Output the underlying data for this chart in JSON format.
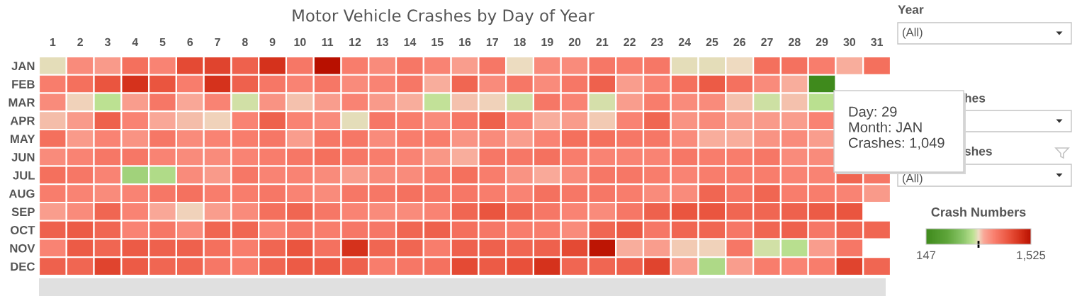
{
  "chart_data": [
    {
      "type": "heatmap",
      "title": "Motor Vehicle Crashes by Day of Year",
      "categories": [
        "1",
        "2",
        "3",
        "4",
        "5",
        "6",
        "7",
        "8",
        "9",
        "10",
        "11",
        "12",
        "13",
        "14",
        "15",
        "16",
        "17",
        "18",
        "19",
        "20",
        "21",
        "22",
        "23",
        "24",
        "25",
        "26",
        "27",
        "28",
        "29",
        "30",
        "31"
      ],
      "y_categories": [
        "JAN",
        "FEB",
        "MAR",
        "APR",
        "MAY",
        "JUN",
        "JUL",
        "AUG",
        "SEP",
        "OCT",
        "NOV",
        "DEC"
      ],
      "cells": [
        [
          825,
          1000,
          950,
          1110,
          1025,
          1275,
          1300,
          1175,
          1375,
          1075,
          1525,
          1050,
          1000,
          1075,
          1025,
          940,
          1075,
          835,
          1000,
          1000,
          1075,
          1050,
          1075,
          825,
          820,
          840,
          1110,
          1100,
          1049,
          900,
          1110
        ],
        [
          1050,
          1110,
          1225,
          1375,
          1225,
          1050,
          1375,
          1175,
          1075,
          1025,
          1075,
          1000,
          1025,
          1075,
          900,
          1150,
          1000,
          1075,
          1000,
          1075,
          1175,
          940,
          1025,
          1110,
          1200,
          1100,
          1000,
          900,
          147,
          null,
          null
        ],
        [
          1000,
          850,
          765,
          940,
          1075,
          910,
          1025,
          795,
          975,
          870,
          940,
          1025,
          950,
          900,
          775,
          870,
          850,
          795,
          1075,
          1025,
          800,
          940,
          1050,
          1000,
          1000,
          870,
          790,
          870,
          760,
          null,
          null
        ],
        [
          875,
          950,
          1175,
          1025,
          910,
          875,
          850,
          1025,
          1175,
          1025,
          1000,
          825,
          1075,
          1050,
          1000,
          1075,
          1175,
          1025,
          900,
          945,
          860,
          1025,
          1150,
          975,
          1000,
          940,
          950,
          940,
          1025,
          null,
          null
        ],
        [
          1110,
          950,
          1025,
          975,
          1075,
          1000,
          1025,
          1050,
          1075,
          940,
          1075,
          1075,
          1000,
          1050,
          1050,
          975,
          1000,
          940,
          1025,
          1110,
          1110,
          1075,
          1075,
          1000,
          900,
          900,
          975,
          1000,
          940,
          null,
          null
        ],
        [
          1000,
          1025,
          1075,
          1075,
          1025,
          1000,
          1000,
          1025,
          1050,
          1075,
          1110,
          1075,
          1050,
          1025,
          965,
          900,
          1075,
          1075,
          1100,
          1050,
          1025,
          1025,
          1025,
          1075,
          1050,
          1050,
          1075,
          1000,
          1000,
          null,
          null
        ],
        [
          1110,
          1075,
          1025,
          690,
          730,
          1000,
          950,
          1075,
          1025,
          1025,
          1000,
          940,
          1000,
          1000,
          1050,
          1110,
          1050,
          975,
          905,
          1000,
          1075,
          1075,
          1050,
          1025,
          1050,
          1050,
          1050,
          1025,
          1025,
          1150,
          1075
        ],
        [
          1050,
          1025,
          1000,
          1025,
          1075,
          1100,
          1050,
          1050,
          1075,
          1025,
          1000,
          1075,
          1075,
          1100,
          1075,
          1075,
          1050,
          1025,
          1100,
          1075,
          1075,
          1050,
          1000,
          1000,
          1150,
          1075,
          1150,
          1050,
          1050,
          1025,
          950
        ],
        [
          940,
          1000,
          1150,
          1025,
          910,
          850,
          940,
          1000,
          1110,
          1150,
          1075,
          1025,
          1000,
          1000,
          1025,
          1150,
          1225,
          1150,
          1075,
          1025,
          1000,
          1075,
          1175,
          1225,
          1225,
          1150,
          1150,
          1175,
          1200,
          1225,
          null
        ],
        [
          1175,
          1200,
          1150,
          1025,
          1075,
          1000,
          1150,
          1150,
          1025,
          1075,
          1050,
          1075,
          1075,
          1150,
          1175,
          1110,
          1075,
          1050,
          1050,
          1000,
          1150,
          1200,
          1075,
          1150,
          1150,
          1075,
          1150,
          1175,
          1075,
          1150,
          1150
        ],
        [
          1025,
          1200,
          1150,
          1200,
          1175,
          1175,
          1110,
          1050,
          1150,
          1225,
          1100,
          1375,
          1150,
          1150,
          1050,
          1175,
          1175,
          1150,
          1175,
          1275,
          1500,
          900,
          940,
          860,
          850,
          1075,
          795,
          755,
          940,
          1075,
          null
        ],
        [
          1175,
          1150,
          1300,
          1200,
          1150,
          1150,
          1075,
          1050,
          1150,
          1200,
          1200,
          1175,
          1050,
          1075,
          1100,
          1275,
          1200,
          1250,
          1375,
          1150,
          1150,
          1175,
          1300,
          940,
          725,
          940,
          1050,
          1025,
          1050,
          1300,
          1150
        ]
      ],
      "clim": [
        147,
        1525
      ],
      "cticks": [
        147,
        {
          "value": 836,
          "label": null
        },
        {
          "value": 1525,
          "label": "1,525"
        }
      ],
      "clabel": "Crash Numbers",
      "annotations": [
        "Day: 29\nMonth: JAN\nCrashes: 1,049"
      ]
    },
    {
      "type": "other",
      "annotations": [
        "Year",
        "(All)",
        "hes",
        "shes",
        "(All)"
      ]
    }
  ]
}
